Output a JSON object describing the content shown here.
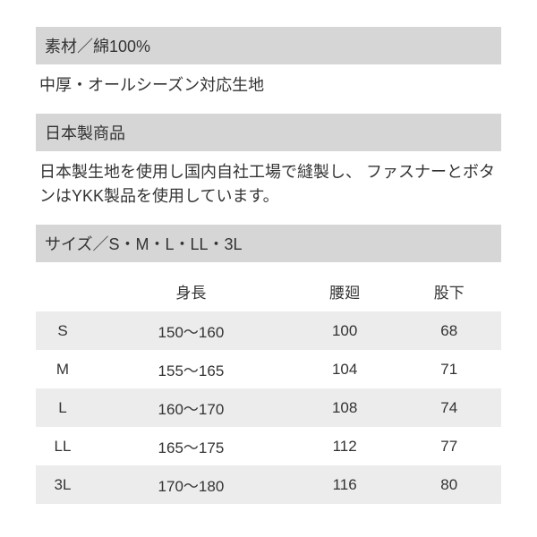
{
  "material": {
    "header": "素材／綿100%",
    "body": "中厚・オールシーズン対応生地"
  },
  "origin": {
    "header": "日本製商品",
    "body": "日本製生地を使用し国内自社工場で縫製し、\nファスナーとボタンはYKK製品を使用しています。"
  },
  "size": {
    "header": "サイズ／S・M・L・LL・3L",
    "columns": [
      "",
      "身長",
      "腰廻",
      "股下"
    ],
    "rows": [
      [
        "S",
        "150～160",
        "100",
        "68"
      ],
      [
        "M",
        "155～165",
        "104",
        "71"
      ],
      [
        "L",
        "160～170",
        "108",
        "74"
      ],
      [
        "LL",
        "165～175",
        "112",
        "77"
      ],
      [
        "3L",
        "170～180",
        "116",
        "80"
      ]
    ]
  },
  "style": {
    "header_bg": "#d6d6d6",
    "row_odd_bg": "#ececec",
    "row_even_bg": "#ffffff",
    "text_color": "#333333",
    "font_size_header": 18,
    "font_size_body": 18,
    "font_size_table": 17
  }
}
